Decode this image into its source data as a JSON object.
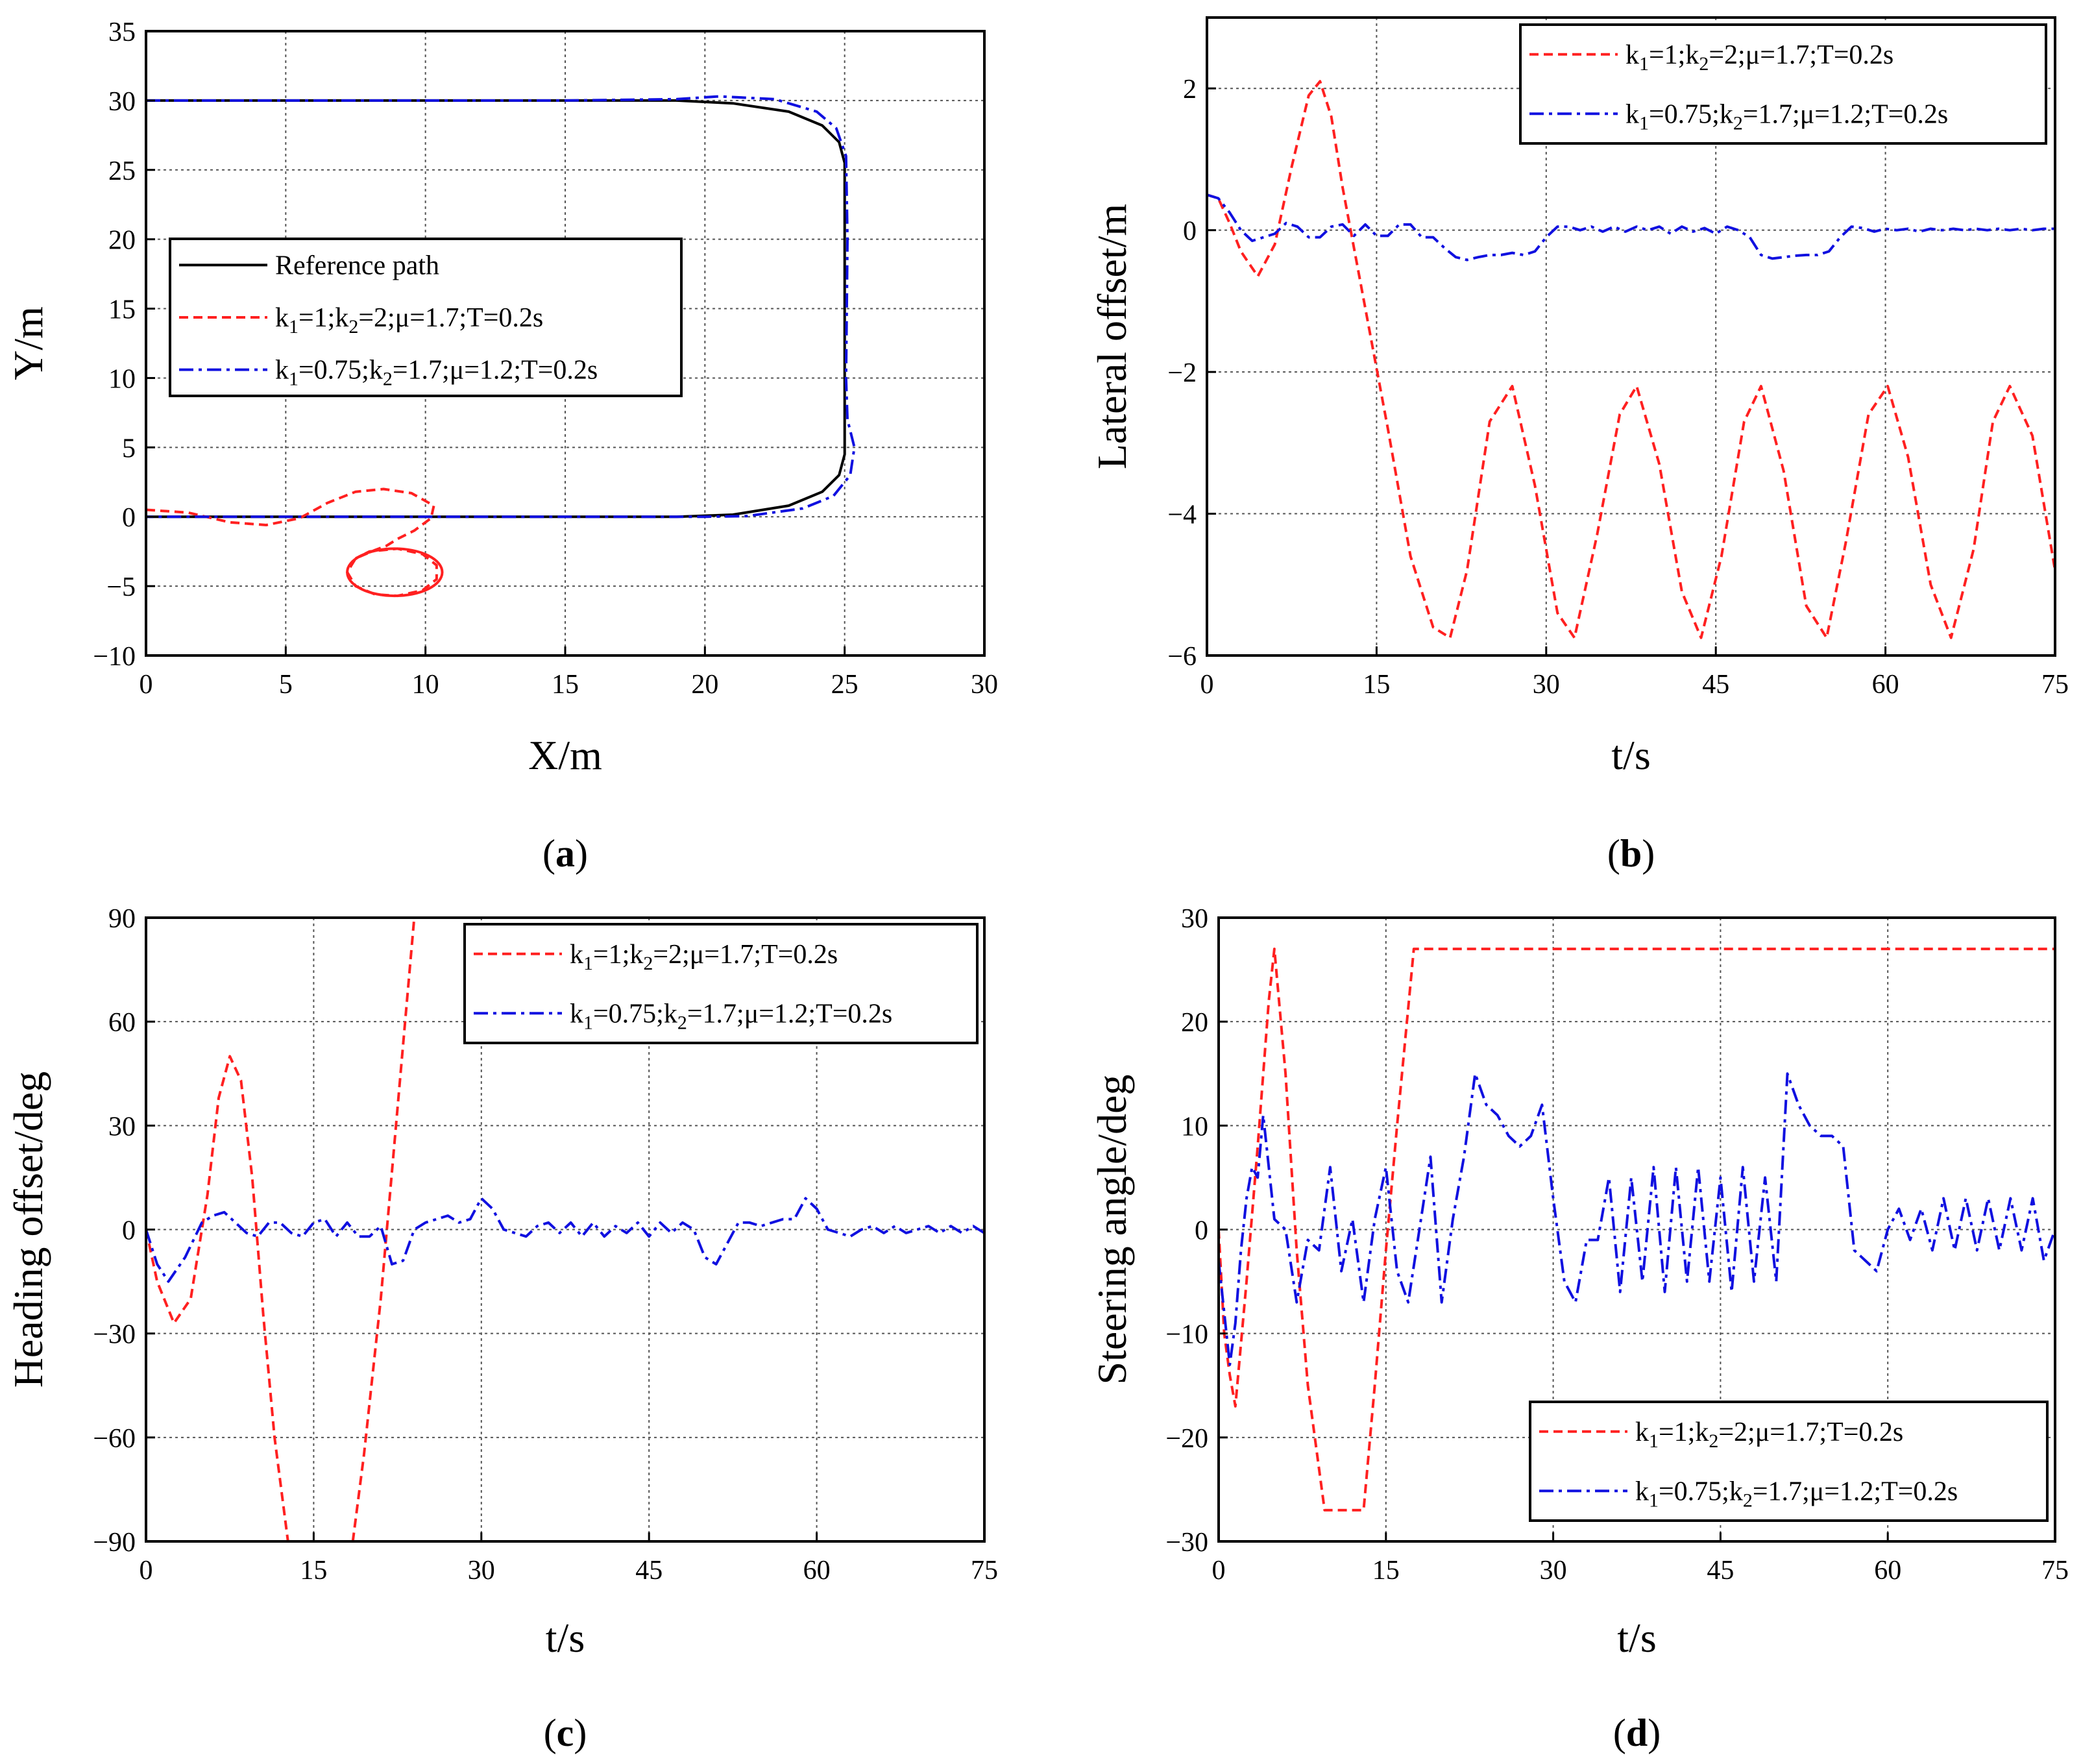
{
  "chart_data": [
    {
      "type": "line",
      "panel": "a",
      "caption": "a",
      "xlabel": "X/m",
      "ylabel": "Y/m",
      "xlim": [
        0,
        30
      ],
      "ylim": [
        -10,
        35
      ],
      "xticks": [
        0,
        5,
        10,
        15,
        20,
        25,
        30
      ],
      "yticks": [
        -10,
        -5,
        0,
        5,
        10,
        15,
        20,
        25,
        30,
        35
      ],
      "xtick_labels": [
        "0",
        "5",
        "10",
        "15",
        "20",
        "25",
        "30"
      ],
      "ytick_labels": [
        "−10",
        "−5",
        "0",
        "5",
        "10",
        "15",
        "20",
        "25",
        "30",
        "35"
      ],
      "grid": true,
      "legend_position": "center-left",
      "series": [
        {
          "name": "Reference path",
          "color": "#000000",
          "style": "solid",
          "legend": [
            "Reference path"
          ],
          "x": [
            0,
            19,
            21,
            23,
            24.2,
            24.8,
            25,
            25,
            25,
            24.8,
            24.2,
            23,
            21,
            19,
            0
          ],
          "y": [
            30,
            30,
            29.8,
            29.2,
            28.2,
            27,
            25.5,
            15,
            4.5,
            3,
            1.8,
            0.8,
            0.15,
            0,
            0
          ]
        },
        {
          "name": "k1=1;k2=2;μ=1.7;T=0.2s",
          "color": "#ff2020",
          "style": "dashed",
          "legend": [
            "k",
            "1",
            "=1;k",
            "2",
            "=2;μ=1.7;T=0.2s"
          ],
          "x": [
            0,
            1.5,
            3,
            4.3,
            5.5,
            6.5,
            7.5,
            8.5,
            9.5,
            10.3,
            10.2,
            9.6,
            9.0,
            8.6,
            8.2,
            7.5,
            7.2,
            7.5,
            8.2,
            9.0,
            9.9,
            10.4,
            10.4,
            9.9,
            9.0,
            8.0,
            7.5
          ],
          "y": [
            0.5,
            0.3,
            -0.4,
            -0.6,
            -0.1,
            1.0,
            1.8,
            2.0,
            1.7,
            0.8,
            -0.1,
            -1.0,
            -1.6,
            -2.1,
            -2.4,
            -3.0,
            -4.0,
            -5.0,
            -5.6,
            -5.7,
            -5.3,
            -4.5,
            -3.5,
            -2.7,
            -2.3,
            -2.5,
            -3.0
          ]
        },
        {
          "name": "k1=0.75;k2=1.7;μ=1.2;T=0.2s",
          "color": "#1010e0",
          "style": "dashdot",
          "legend": [
            "k",
            "1",
            "=0.75;k",
            "2",
            "=1.7;μ=1.2;T=0.2s"
          ],
          "x": [
            0,
            1.5,
            3,
            5,
            8,
            15,
            19,
            20.5,
            22.5,
            24,
            24.7,
            25.05,
            25.1,
            25.05,
            25.1,
            25.35,
            25.2,
            24.6,
            23.5,
            21.5,
            20,
            15,
            5,
            0
          ],
          "y": [
            30,
            30,
            30,
            30,
            30,
            30,
            30.1,
            30.3,
            30.1,
            29.2,
            28,
            26,
            20,
            10,
            7,
            5,
            3,
            1.5,
            0.6,
            0.05,
            0,
            0,
            0,
            0
          ]
        }
      ]
    },
    {
      "type": "line",
      "panel": "b",
      "caption": "b",
      "xlabel": "t/s",
      "ylabel": "Lateral offset/m",
      "xlim": [
        0,
        75
      ],
      "ylim": [
        -6,
        3
      ],
      "xticks": [
        0,
        15,
        30,
        45,
        60,
        75
      ],
      "yticks": [
        -6,
        -4,
        -2,
        0,
        2
      ],
      "xtick_labels": [
        "0",
        "15",
        "30",
        "45",
        "60",
        "75"
      ],
      "ytick_labels": [
        "−6",
        "−4",
        "−2",
        "0",
        "2"
      ],
      "grid": true,
      "legend_position": "top-right",
      "series": [
        {
          "name": "k1=1;k2=2;μ=1.7;T=0.2s",
          "color": "#ff2020",
          "style": "dashed",
          "legend": [
            "k",
            "1",
            "=1;k",
            "2",
            "=2;μ=1.7;T=0.2s"
          ],
          "x": [
            0,
            1,
            2,
            3,
            4.5,
            6,
            7.5,
            9,
            10,
            11,
            12,
            14,
            16,
            18,
            20,
            21.5,
            23,
            25,
            27,
            29,
            31,
            32.5,
            34.5,
            36.5,
            38,
            40,
            42,
            43.7,
            45.5,
            47.5,
            49,
            51,
            53,
            54.8,
            56.5,
            58.5,
            60.2,
            62,
            64,
            65.8,
            67.8,
            69.5,
            71,
            73,
            75
          ],
          "y": [
            0.5,
            0.45,
            0.1,
            -0.3,
            -0.65,
            -0.2,
            0.9,
            1.9,
            2.1,
            1.6,
            0.6,
            -1.1,
            -2.8,
            -4.6,
            -5.6,
            -5.75,
            -4.8,
            -2.7,
            -2.2,
            -3.6,
            -5.4,
            -5.75,
            -4.3,
            -2.6,
            -2.2,
            -3.3,
            -5.1,
            -5.75,
            -4.6,
            -2.7,
            -2.2,
            -3.4,
            -5.3,
            -5.75,
            -4.4,
            -2.6,
            -2.2,
            -3.2,
            -5.0,
            -5.75,
            -4.5,
            -2.7,
            -2.2,
            -2.9,
            -4.8
          ]
        },
        {
          "name": "k1=0.75;k2=1.7;μ=1.2;T=0.2s",
          "color": "#1010e0",
          "style": "dashdot",
          "legend": [
            "k",
            "1",
            "=0.75;k",
            "2",
            "=1.7;μ=1.2;T=0.2s"
          ],
          "x": [
            0,
            1,
            2,
            3,
            4,
            5,
            6,
            7,
            8,
            9,
            10,
            11,
            12,
            13,
            14,
            15,
            16,
            17,
            18,
            19,
            20,
            21,
            22,
            23,
            24,
            25,
            26,
            27,
            28,
            29,
            30,
            31,
            32,
            33,
            34,
            35,
            36,
            37,
            38,
            39,
            40,
            41,
            42,
            43,
            44,
            45,
            46,
            47,
            48,
            49,
            50,
            51,
            52,
            53,
            54,
            55,
            56,
            57,
            58,
            59,
            60,
            61,
            62,
            63,
            64,
            65,
            66,
            67,
            68,
            69,
            70,
            71,
            72,
            73,
            74,
            75
          ],
          "y": [
            0.5,
            0.45,
            0.25,
            0,
            -0.15,
            -0.1,
            -0.05,
            0.1,
            0.05,
            -0.1,
            -0.1,
            0.05,
            0.08,
            -0.08,
            0.08,
            -0.08,
            -0.08,
            0.08,
            0.08,
            -0.1,
            -0.1,
            -0.25,
            -0.38,
            -0.42,
            -0.38,
            -0.35,
            -0.35,
            -0.32,
            -0.35,
            -0.3,
            -0.1,
            0.05,
            0.05,
            0,
            0.05,
            -0.02,
            0.05,
            -0.02,
            0.05,
            0,
            0.05,
            -0.05,
            0.05,
            -0.02,
            0.03,
            -0.05,
            0.05,
            0,
            -0.1,
            -0.35,
            -0.4,
            -0.38,
            -0.36,
            -0.35,
            -0.35,
            -0.3,
            -0.1,
            0.05,
            0.03,
            -0.02,
            0.02,
            0,
            0.02,
            -0.02,
            0.02,
            0,
            0.02,
            0,
            0.02,
            0,
            0.02,
            0,
            0.02,
            0,
            0.02,
            0.02
          ]
        }
      ]
    },
    {
      "type": "line",
      "panel": "c",
      "caption": "c",
      "xlabel": "t/s",
      "ylabel": "Heading offset/deg",
      "xlim": [
        0,
        75
      ],
      "ylim": [
        -90,
        90
      ],
      "xticks": [
        0,
        15,
        30,
        45,
        60,
        75
      ],
      "yticks": [
        -90,
        -60,
        -30,
        0,
        30,
        60,
        90
      ],
      "xtick_labels": [
        "0",
        "15",
        "30",
        "45",
        "60",
        "75"
      ],
      "ytick_labels": [
        "−90",
        "−60",
        "−30",
        "0",
        "30",
        "60",
        "90"
      ],
      "grid": true,
      "legend_position": "top-right",
      "series": [
        {
          "name": "k1=1;k2=2;μ=1.7;T=0.2s",
          "color": "#ff2020",
          "style": "dashed",
          "legend": [
            "k",
            "1",
            "=1;k",
            "2",
            "=2;μ=1.7;T=0.2s"
          ],
          "x": [
            0,
            1,
            2.5,
            4,
            5.5,
            6.5,
            7.5,
            8.5,
            9.5,
            10.5,
            11.5,
            12.7,
            18.5,
            19.5,
            21,
            22.5,
            24
          ],
          "y": [
            0,
            -15,
            -27,
            -20,
            10,
            38,
            50,
            43,
            15,
            -25,
            -60,
            -90,
            -90,
            -65,
            -20,
            35,
            90
          ]
        },
        {
          "name": "k1=0.75;k2=1.7;μ=1.2;T=0.2s",
          "color": "#1010e0",
          "style": "dashdot",
          "legend": [
            "k",
            "1",
            "=0.75;k",
            "2",
            "=1.7;μ=1.2;T=0.2s"
          ],
          "x": [
            0,
            1,
            2,
            3.5,
            5,
            6,
            7,
            8,
            9,
            10,
            11,
            12,
            13,
            14,
            15,
            16,
            17,
            18,
            19,
            20,
            21,
            22,
            23,
            24,
            25,
            26,
            27,
            28,
            29,
            30,
            31,
            32,
            33,
            34,
            35,
            36,
            37,
            38,
            39,
            40,
            41,
            42,
            43,
            44,
            45,
            46,
            47,
            48,
            49,
            50,
            51,
            52,
            53,
            54,
            55,
            56,
            57,
            58,
            59,
            60,
            61,
            62,
            63,
            64,
            65,
            66,
            67,
            68,
            69,
            70,
            71,
            72,
            73,
            74,
            75
          ],
          "y": [
            0,
            -10,
            -15,
            -8,
            2,
            4,
            5,
            2,
            -1,
            -2,
            2,
            2,
            -1,
            -2,
            2,
            3,
            -2,
            2,
            -2,
            -2,
            1,
            -10,
            -9,
            0,
            2,
            3,
            4,
            2,
            3,
            9,
            6,
            0,
            -1,
            -2,
            1,
            2,
            -1,
            2,
            -2,
            2,
            -2,
            1,
            -1,
            2,
            -2,
            2,
            -1,
            2,
            0,
            -8,
            -10,
            -4,
            2,
            2,
            1,
            2,
            3,
            3,
            9,
            6,
            0,
            -1,
            -2,
            0,
            1,
            -1,
            1,
            -1,
            0,
            1,
            -1,
            1,
            -1,
            1,
            -1
          ]
        }
      ]
    },
    {
      "type": "line",
      "panel": "d",
      "caption": "d",
      "xlabel": "t/s",
      "ylabel": "Steering angle/deg",
      "xlim": [
        0,
        75
      ],
      "ylim": [
        -30,
        30
      ],
      "xticks": [
        0,
        15,
        30,
        45,
        60,
        75
      ],
      "yticks": [
        -30,
        -20,
        -10,
        0,
        10,
        20,
        30
      ],
      "xtick_labels": [
        "0",
        "15",
        "30",
        "45",
        "60",
        "75"
      ],
      "ytick_labels": [
        "−30",
        "−20",
        "−10",
        "0",
        "10",
        "20",
        "30"
      ],
      "grid": true,
      "legend_position": "bottom-right",
      "series": [
        {
          "name": "k1=1;k2=2;μ=1.7;T=0.2s",
          "color": "#ff2020",
          "style": "dashed",
          "legend": [
            "k",
            "1",
            "=1;k",
            "2",
            "=2;μ=1.7;T=0.2s"
          ],
          "x": [
            0,
            0.5,
            1,
            1.5,
            2.5,
            3.5,
            4.5,
            5,
            6,
            7,
            8,
            9.5,
            13,
            14,
            15,
            16,
            17.5,
            75
          ],
          "y": [
            0,
            -10,
            -14,
            -17,
            -5,
            8,
            22,
            27,
            15,
            -2,
            -15,
            -27,
            -27,
            -15,
            -2,
            10,
            27,
            27
          ]
        },
        {
          "name": "k1=0.75;k2=1.7;μ=1.2;T=0.2s",
          "color": "#1010e0",
          "style": "dashdot",
          "legend": [
            "k",
            "1",
            "=0.75;k",
            "2",
            "=1.7;μ=1.2;T=0.2s"
          ],
          "x": [
            0,
            0.5,
            1,
            1.5,
            2,
            2.5,
            3,
            3.5,
            4,
            5,
            6,
            7,
            8,
            9,
            10,
            11,
            12,
            13,
            14,
            15,
            16,
            17,
            18,
            19,
            20,
            21,
            22,
            23,
            24,
            25,
            26,
            27,
            28,
            29,
            30,
            31,
            32,
            33,
            34,
            35,
            36,
            37,
            38,
            39,
            40,
            41,
            42,
            43,
            44,
            45,
            46,
            47,
            48,
            49,
            50,
            51,
            52,
            53,
            54,
            55,
            56,
            57,
            58,
            59,
            60,
            61,
            62,
            63,
            64,
            65,
            66,
            67,
            68,
            69,
            70,
            71,
            72,
            73,
            74,
            75
          ],
          "y": [
            -3,
            -8,
            -13,
            -9,
            -2,
            3,
            6,
            5,
            11,
            1,
            0,
            -7,
            -1,
            -2,
            6,
            -4,
            1,
            -7,
            1,
            6,
            -4,
            -7,
            0,
            7,
            -7,
            1,
            7,
            15,
            12,
            11,
            9,
            8,
            9,
            12,
            3,
            -5,
            -7,
            -1,
            -1,
            5,
            -6,
            5,
            -5,
            6,
            -6,
            6,
            -5,
            6,
            -5,
            5,
            -6,
            6,
            -5,
            5,
            -5,
            15,
            12,
            10,
            9,
            9,
            8,
            -2,
            -3,
            -4,
            0,
            2,
            -1,
            2,
            -2,
            3,
            -2,
            3,
            -2,
            3,
            -2,
            3,
            -2,
            3,
            -3,
            0
          ]
        }
      ]
    }
  ]
}
